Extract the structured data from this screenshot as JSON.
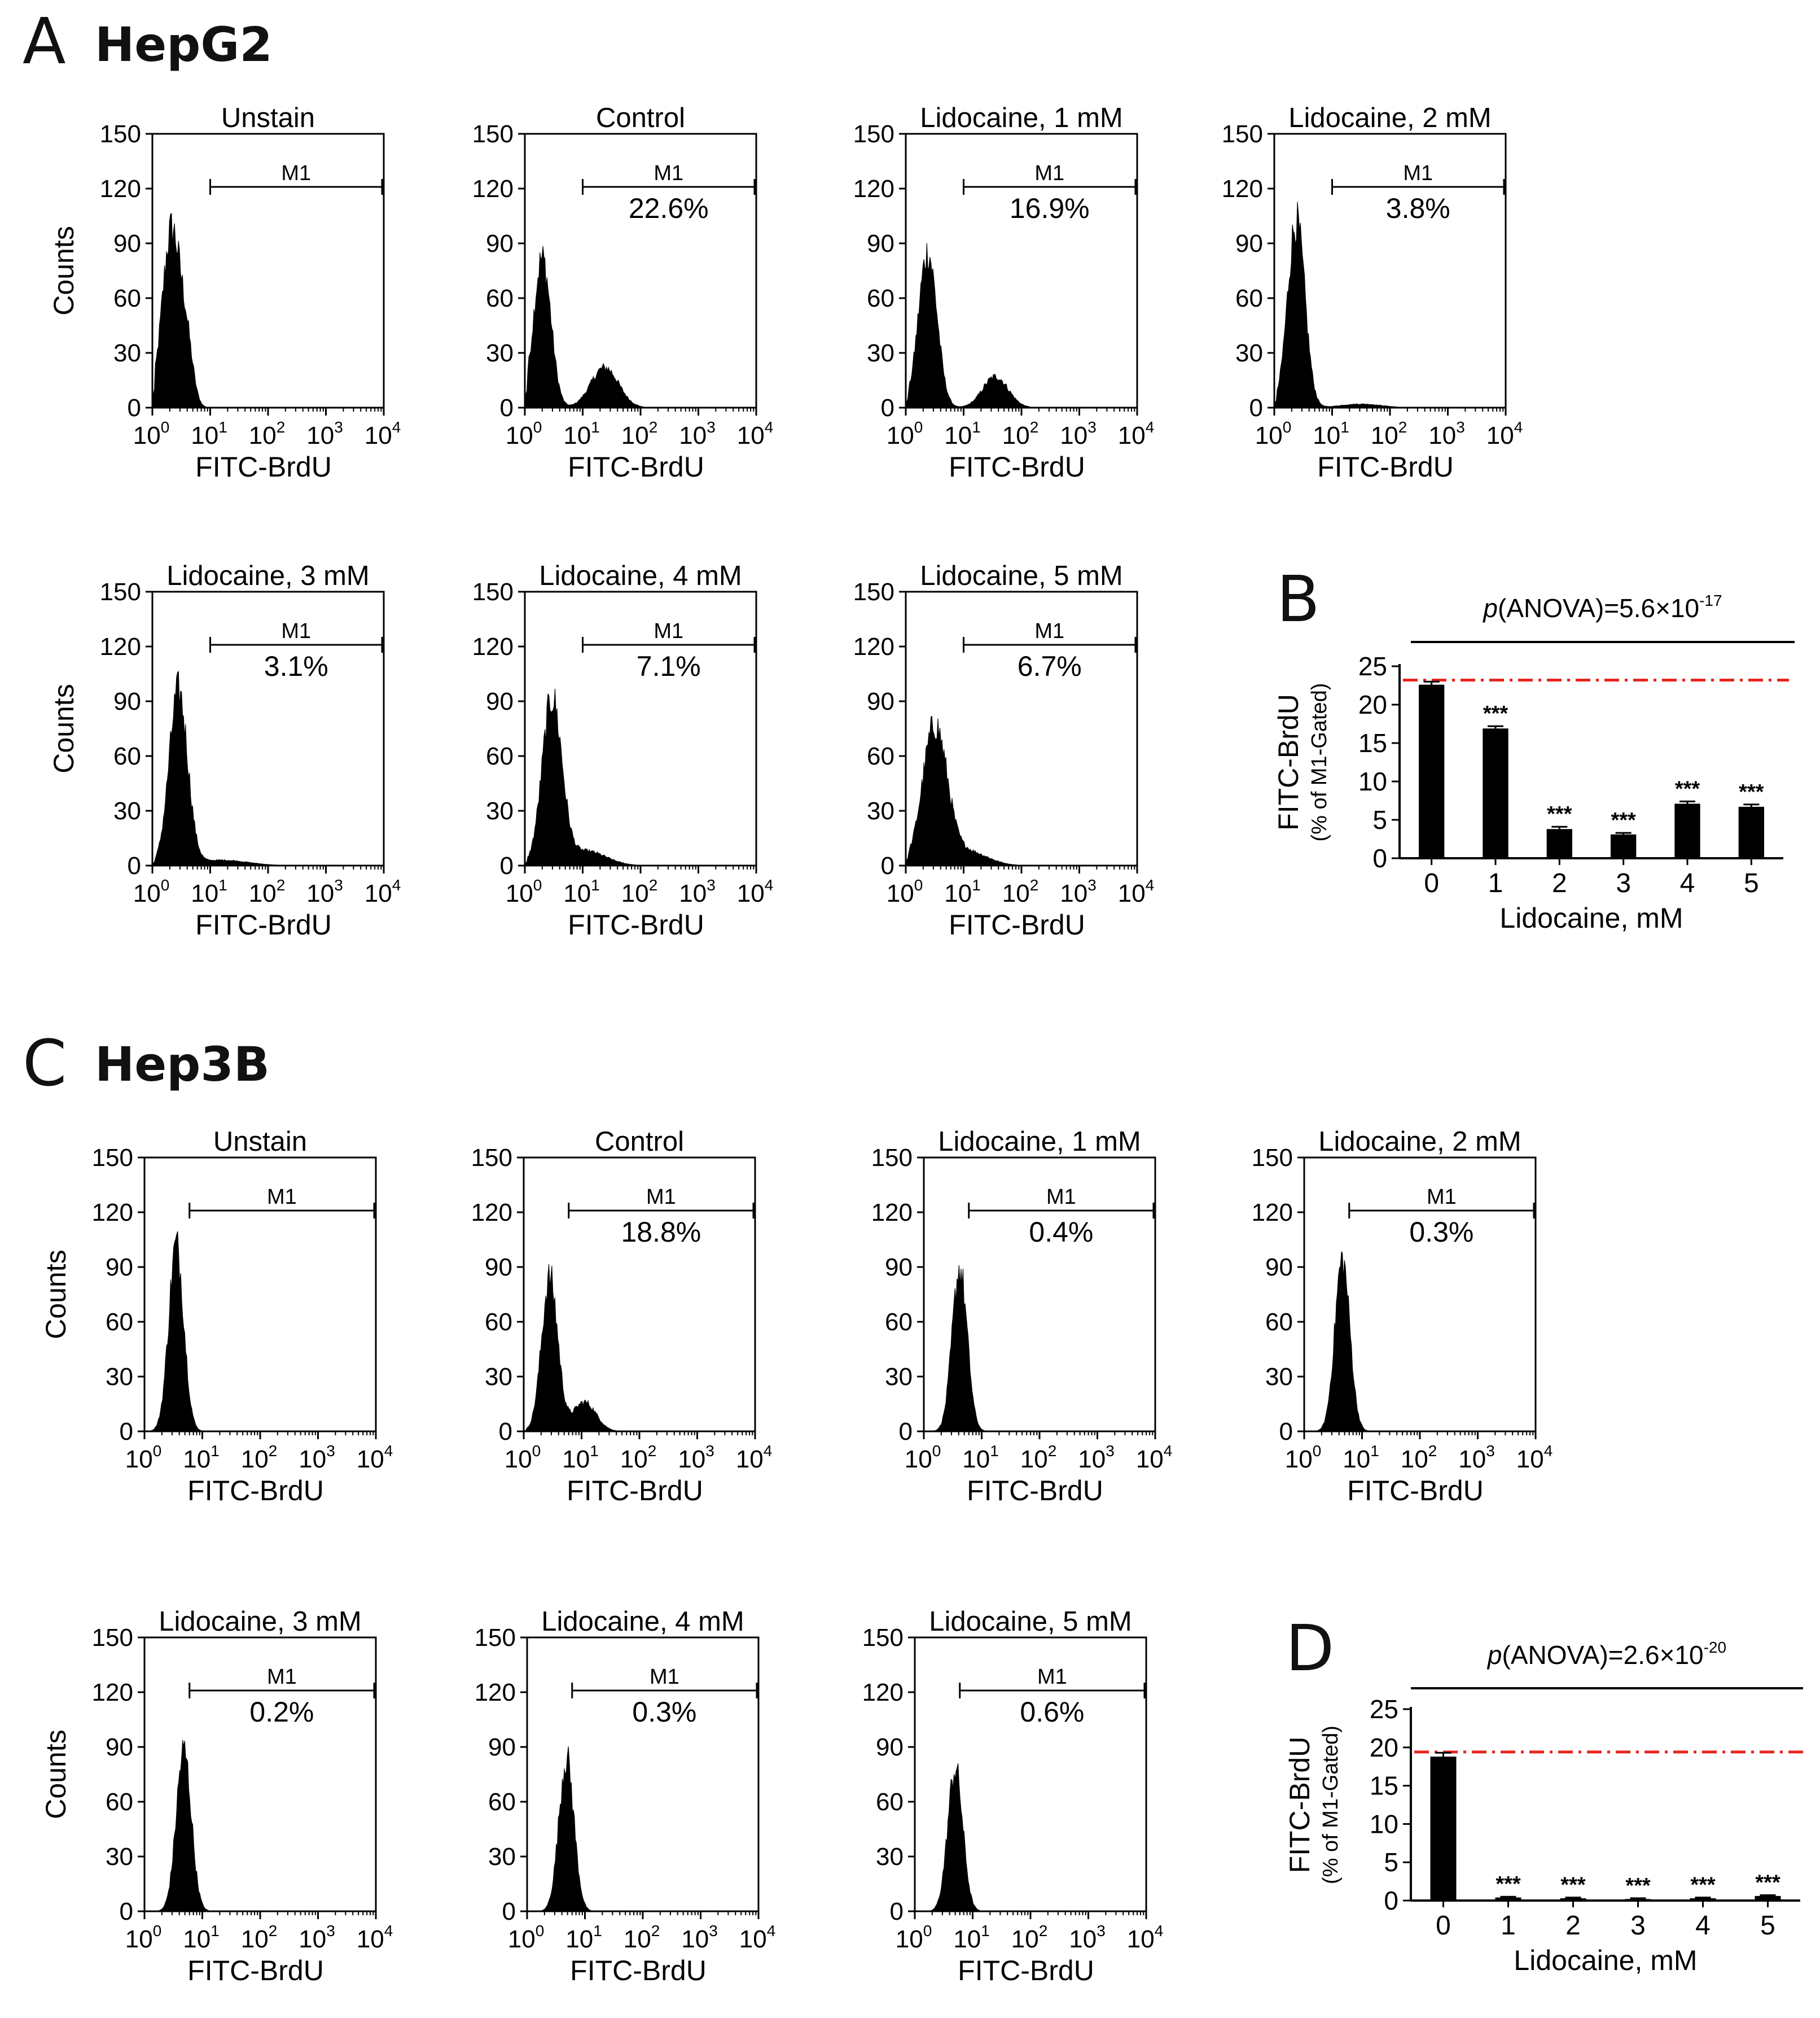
{
  "figure_panels": [
    {
      "letter": "A",
      "cell_line": "HepG2"
    },
    {
      "letter": "B",
      "cell_line": ""
    },
    {
      "letter": "C",
      "cell_line": "Hep3B"
    },
    {
      "letter": "D",
      "cell_line": ""
    }
  ],
  "chart_data": [
    {
      "type": "histogram",
      "group": "A",
      "cell_line": "HepG2",
      "x_axis": {
        "label": "FITC-BrdU",
        "scale": "log",
        "ticks": [
          {
            "base": "10",
            "exp": "0"
          },
          {
            "base": "10",
            "exp": "1"
          },
          {
            "base": "10",
            "exp": "2"
          },
          {
            "base": "10",
            "exp": "3"
          },
          {
            "base": "10",
            "exp": "4"
          }
        ]
      },
      "y_axis": {
        "label": "Counts",
        "ylim": [
          0,
          150
        ],
        "ticks": [
          "0",
          "30",
          "60",
          "90",
          "120",
          "150"
        ]
      },
      "gate_label": "M1",
      "panels": [
        {
          "title": "Unstain",
          "gate_start": 10,
          "gate_end": 10000,
          "gate_percent": "",
          "peaks": [
            {
              "center": 0.33,
              "width": 0.16,
              "height": 97
            },
            {
              "center": 0.6,
              "width": 0.11,
              "height": 26
            }
          ]
        },
        {
          "title": "Control",
          "gate_start": 10,
          "gate_end": 10000,
          "gate_percent": "22.6%",
          "peaks": [
            {
              "center": 0.3,
              "width": 0.15,
              "height": 82
            },
            {
              "center": 1.38,
              "width": 0.24,
              "height": 22
            }
          ]
        },
        {
          "title": "Lidocaine, 1 mM",
          "gate_start": 10,
          "gate_end": 10000,
          "gate_percent": "16.9%",
          "peaks": [
            {
              "center": 0.38,
              "width": 0.16,
              "height": 85
            },
            {
              "center": 1.55,
              "width": 0.22,
              "height": 17
            }
          ]
        },
        {
          "title": "Lidocaine, 2 mM",
          "gate_start": 10,
          "gate_end": 10000,
          "gate_percent": "3.8%",
          "peaks": [
            {
              "center": 0.38,
              "width": 0.15,
              "height": 102
            },
            {
              "center": 1.5,
              "width": 0.35,
              "height": 2
            }
          ]
        },
        {
          "title": "Lidocaine, 3 mM",
          "gate_start": 10,
          "gate_end": 10000,
          "gate_percent": "3.1%",
          "peaks": [
            {
              "center": 0.45,
              "width": 0.16,
              "height": 95
            },
            {
              "center": 1.2,
              "width": 0.45,
              "height": 3
            }
          ]
        },
        {
          "title": "Lidocaine, 4 mM",
          "gate_start": 10,
          "gate_end": 10000,
          "gate_percent": "7.1%",
          "peaks": [
            {
              "center": 0.47,
              "width": 0.17,
              "height": 90
            },
            {
              "center": 1.05,
              "width": 0.35,
              "height": 8
            }
          ]
        },
        {
          "title": "Lidocaine, 5 mM",
          "gate_start": 10,
          "gate_end": 10000,
          "gate_percent": "6.7%",
          "peaks": [
            {
              "center": 0.5,
              "width": 0.21,
              "height": 75
            },
            {
              "center": 1.05,
              "width": 0.35,
              "height": 8
            }
          ]
        }
      ]
    },
    {
      "type": "bar",
      "group": "B",
      "annotation": {
        "prefix": "p",
        "text": "(ANOVA)=5.6×10",
        "exponent": "-17"
      },
      "categories": [
        "0",
        "1",
        "2",
        "3",
        "4",
        "5"
      ],
      "values": [
        22.6,
        16.9,
        3.8,
        3.1,
        7.1,
        6.7
      ],
      "errors": [
        0.4,
        0.3,
        0.3,
        0.2,
        0.3,
        0.3
      ],
      "significance": [
        "",
        "***",
        "***",
        "***",
        "***",
        "***"
      ],
      "reference_line": 23.2,
      "xlabel": "Lidocaine, mM",
      "ylabel": "FITC-BrdU",
      "ylabel_sub": "(% of M1-Gated)",
      "ylim": [
        0,
        25
      ],
      "yticks": [
        "0",
        "5",
        "10",
        "15",
        "20",
        "25"
      ]
    },
    {
      "type": "histogram",
      "group": "C",
      "cell_line": "Hep3B",
      "x_axis": {
        "label": "FITC-BrdU",
        "scale": "log",
        "ticks": [
          {
            "base": "10",
            "exp": "0"
          },
          {
            "base": "10",
            "exp": "1"
          },
          {
            "base": "10",
            "exp": "2"
          },
          {
            "base": "10",
            "exp": "3"
          },
          {
            "base": "10",
            "exp": "4"
          }
        ]
      },
      "y_axis": {
        "label": "Counts",
        "ylim": [
          0,
          150
        ],
        "ticks": [
          "0",
          "30",
          "60",
          "90",
          "120",
          "150"
        ]
      },
      "gate_label": "M1",
      "panels": [
        {
          "title": "Unstain",
          "gate_start": 6,
          "gate_end": 10000,
          "gate_percent": "",
          "peaks": [
            {
              "center": 0.55,
              "width": 0.13,
              "height": 102
            }
          ]
        },
        {
          "title": "Control",
          "gate_start": 6,
          "gate_end": 10000,
          "gate_percent": "18.8%",
          "peaks": [
            {
              "center": 0.45,
              "width": 0.14,
              "height": 84
            },
            {
              "center": 1.05,
              "width": 0.2,
              "height": 16
            }
          ]
        },
        {
          "title": "Lidocaine, 1 mM",
          "gate_start": 6,
          "gate_end": 10000,
          "gate_percent": "0.4%",
          "peaks": [
            {
              "center": 0.62,
              "width": 0.13,
              "height": 89
            }
          ]
        },
        {
          "title": "Lidocaine, 2 mM",
          "gate_start": 6,
          "gate_end": 10000,
          "gate_percent": "0.3%",
          "peaks": [
            {
              "center": 0.66,
              "width": 0.13,
              "height": 94
            }
          ]
        },
        {
          "title": "Lidocaine, 3 mM",
          "gate_start": 6,
          "gate_end": 10000,
          "gate_percent": "0.2%",
          "peaks": [
            {
              "center": 0.68,
              "width": 0.13,
              "height": 88
            }
          ]
        },
        {
          "title": "Lidocaine, 4 mM",
          "gate_start": 6,
          "gate_end": 10000,
          "gate_percent": "0.3%",
          "peaks": [
            {
              "center": 0.68,
              "width": 0.13,
              "height": 84
            }
          ]
        },
        {
          "title": "Lidocaine, 5 mM",
          "gate_start": 6,
          "gate_end": 10000,
          "gate_percent": "0.6%",
          "peaks": [
            {
              "center": 0.7,
              "width": 0.13,
              "height": 78
            }
          ]
        }
      ]
    },
    {
      "type": "bar",
      "group": "D",
      "annotation": {
        "prefix": "p",
        "text": "(ANOVA)=2.6×10",
        "exponent": "-20"
      },
      "categories": [
        "0",
        "1",
        "2",
        "3",
        "4",
        "5"
      ],
      "values": [
        18.8,
        0.4,
        0.3,
        0.2,
        0.3,
        0.6
      ],
      "errors": [
        0.5,
        0.1,
        0.1,
        0.1,
        0.1,
        0.1
      ],
      "significance": [
        "",
        "***",
        "***",
        "***",
        "***",
        "***"
      ],
      "reference_line": 19.4,
      "xlabel": "Lidocaine, mM",
      "ylabel": "FITC-BrdU",
      "ylabel_sub": "(% of M1-Gated)",
      "ylim": [
        0,
        25
      ],
      "yticks": [
        "0",
        "5",
        "10",
        "15",
        "20",
        "25"
      ]
    }
  ],
  "colors": {
    "ink": "#000000",
    "fill": "#000000",
    "reference": "#e8251f",
    "background": "#ffffff"
  }
}
